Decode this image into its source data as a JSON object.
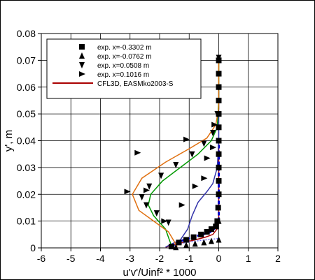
{
  "chart_data": {
    "type": "scatter",
    "xlabel": "u'v'/Uinf² * 1000",
    "ylabel": "y', m",
    "xlim": [
      -6,
      2
    ],
    "ylim": [
      0,
      0.08
    ],
    "xticks": [
      "-6",
      "-5",
      "-4",
      "-3",
      "-2",
      "-1",
      "0",
      "1",
      "2"
    ],
    "yticks": [
      "0",
      "0.01",
      "0.02",
      "0.03",
      "0.04",
      "0.05",
      "0.06",
      "0.07",
      "0.08"
    ],
    "grid": true,
    "legend_position": "top-left",
    "series": [
      {
        "name": "exp. x=-0.3302 m",
        "kind": "markers",
        "marker": "square",
        "color": "#000000",
        "points": [
          [
            -1.6,
            0.0005
          ],
          [
            -1.35,
            0.002
          ],
          [
            -1.1,
            0.003
          ],
          [
            -0.85,
            0.004
          ],
          [
            -0.6,
            0.005
          ],
          [
            -0.4,
            0.006
          ],
          [
            -0.25,
            0.007
          ],
          [
            -0.1,
            0.008
          ],
          [
            -0.05,
            0.01
          ],
          [
            -0.02,
            0.015
          ],
          [
            0.0,
            0.02
          ],
          [
            0.0,
            0.025
          ],
          [
            0.0,
            0.03
          ],
          [
            0.0,
            0.035
          ],
          [
            0.0,
            0.04
          ],
          [
            0.0,
            0.045
          ],
          [
            0.0,
            0.05
          ],
          [
            0.0,
            0.055
          ],
          [
            0.0,
            0.06
          ],
          [
            0.0,
            0.065
          ],
          [
            0.0,
            0.07
          ]
        ]
      },
      {
        "name": "exp. x=-0.0762 m",
        "kind": "markers",
        "marker": "triangle-up",
        "color": "#000000",
        "points": [
          [
            -1.45,
            0.0002
          ],
          [
            -1.1,
            0.001
          ],
          [
            -0.8,
            0.0015
          ],
          [
            -0.5,
            0.002
          ],
          [
            -0.25,
            0.0025
          ],
          [
            0.0,
            0.003
          ],
          [
            0.0,
            0.01
          ],
          [
            0.0,
            0.03
          ],
          [
            0.0,
            0.05
          ],
          [
            0.0,
            0.07
          ]
        ]
      },
      {
        "name": "exp. x=0.0508 m",
        "kind": "markers",
        "marker": "triangle-down",
        "color": "#000000",
        "points": [
          [
            -1.7,
            0.0095
          ],
          [
            -2.1,
            0.013
          ],
          [
            -2.45,
            0.016
          ],
          [
            -2.6,
            0.019
          ],
          [
            -2.35,
            0.023
          ],
          [
            -1.95,
            0.027
          ],
          [
            -1.45,
            0.031
          ],
          [
            -0.9,
            0.035
          ],
          [
            -0.5,
            0.039
          ],
          [
            -0.2,
            0.043
          ],
          [
            -0.05,
            0.05
          ],
          [
            0.0,
            0.06
          ],
          [
            0.0,
            0.071
          ]
        ]
      },
      {
        "name": "exp. x=0.1016 m",
        "kind": "markers",
        "marker": "triangle-right",
        "color": "#000000",
        "points": [
          [
            -2.75,
            0.0355
          ],
          [
            -3.1,
            0.021
          ],
          [
            -2.45,
            0.0215
          ],
          [
            -1.85,
            0.01
          ],
          [
            -1.25,
            0.016
          ],
          [
            -0.8,
            0.023
          ],
          [
            -0.5,
            0.026
          ],
          [
            -0.4,
            0.0335
          ],
          [
            -0.2,
            0.0375
          ],
          [
            -1.1,
            0.0405
          ],
          [
            -0.15,
            0.046
          ]
        ]
      },
      {
        "name": "CFL3D, EASMko2003-S",
        "kind": "line",
        "color": "#aa0000",
        "points": [
          [
            -1.8,
            0.0002
          ],
          [
            -1.6,
            0.001
          ],
          [
            -1.2,
            0.002
          ],
          [
            -0.8,
            0.003
          ],
          [
            -0.45,
            0.004
          ],
          [
            -0.2,
            0.005
          ],
          [
            -0.06,
            0.007
          ],
          [
            0.0,
            0.01
          ],
          [
            0.0,
            0.02
          ],
          [
            0.0,
            0.03
          ],
          [
            0.0,
            0.04
          ]
        ]
      },
      {
        "name": "",
        "kind": "line",
        "color": "#0000cc",
        "dashed": true,
        "points": [
          [
            -1.6,
            0.0005
          ],
          [
            -1.3,
            0.0025
          ],
          [
            -0.9,
            0.004
          ],
          [
            -0.55,
            0.005
          ],
          [
            -0.25,
            0.006
          ],
          [
            -0.08,
            0.008
          ],
          [
            0.0,
            0.011
          ],
          [
            0.0,
            0.02
          ],
          [
            0.0,
            0.03
          ],
          [
            0.0,
            0.041
          ]
        ]
      },
      {
        "name": "",
        "kind": "line",
        "color": "#3333aa",
        "points": [
          [
            -1.8,
            0.0003
          ],
          [
            -1.3,
            0.003
          ],
          [
            -1.05,
            0.007
          ],
          [
            -0.9,
            0.012
          ],
          [
            -0.7,
            0.017
          ],
          [
            -0.4,
            0.021
          ],
          [
            -0.2,
            0.024
          ],
          [
            -0.05,
            0.03
          ],
          [
            0.0,
            0.04
          ],
          [
            0.0,
            0.06
          ]
        ]
      },
      {
        "name": "",
        "kind": "line",
        "color": "#009900",
        "points": [
          [
            -1.6,
            0.0008
          ],
          [
            -1.8,
            0.007
          ],
          [
            -2.2,
            0.012
          ],
          [
            -2.38,
            0.016
          ],
          [
            -2.3,
            0.02
          ],
          [
            -1.9,
            0.025
          ],
          [
            -1.3,
            0.03
          ],
          [
            -0.7,
            0.035
          ],
          [
            -0.25,
            0.04
          ],
          [
            -0.05,
            0.045
          ],
          [
            0.0,
            0.055
          ],
          [
            0.0,
            0.07
          ]
        ]
      },
      {
        "name": "",
        "kind": "line",
        "color": "#e07010",
        "points": [
          [
            -1.4,
            0.0005
          ],
          [
            -1.7,
            0.006
          ],
          [
            -2.2,
            0.01
          ],
          [
            -2.7,
            0.014
          ],
          [
            -2.92,
            0.02
          ],
          [
            -2.6,
            0.026
          ],
          [
            -1.8,
            0.032
          ],
          [
            -1.0,
            0.037
          ],
          [
            -0.4,
            0.041
          ],
          [
            -0.1,
            0.046
          ],
          [
            0.0,
            0.052
          ],
          [
            0.0,
            0.062
          ],
          [
            0.0,
            0.072
          ]
        ]
      },
      {
        "name": "",
        "kind": "line",
        "color": "#7070ff",
        "dotted": true,
        "points": [
          [
            -1.55,
            0.0003
          ],
          [
            -1.35,
            0.0015
          ],
          [
            -1.0,
            0.0022
          ],
          [
            -0.6,
            0.0028
          ],
          [
            -0.25,
            0.0032
          ],
          [
            0.0,
            0.0035
          ]
        ]
      }
    ]
  }
}
